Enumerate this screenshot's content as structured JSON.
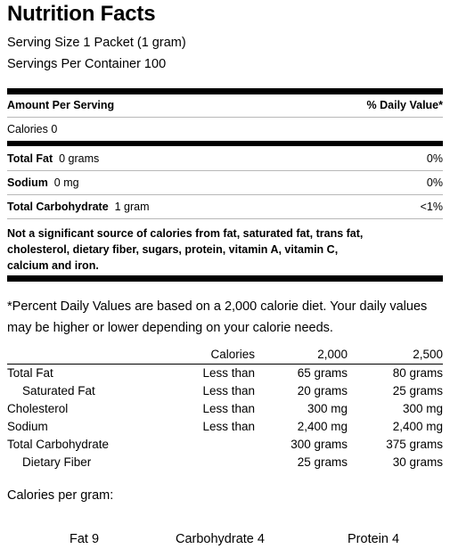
{
  "title": "Nutrition Facts",
  "serving_size": "Serving Size 1 Packet (1 gram)",
  "servings_per_container": "Servings Per Container 100",
  "amount_header": "Amount Per Serving",
  "dv_header": "% Daily Value*",
  "calories": "Calories 0",
  "nutrients": [
    {
      "name": "Total Fat",
      "amount": "0 grams",
      "dv": "0%"
    },
    {
      "name": "Sodium",
      "amount": "0 mg",
      "dv": "0%"
    },
    {
      "name": "Total Carbohydrate",
      "amount": "1 gram",
      "dv": "<1%"
    }
  ],
  "not_significant_note": "Not a significant source of calories from fat, saturated fat, trans fat, cholesterol, dietary fiber, sugars, protein, vitamin A, vitamin C, calcium and iron.",
  "footnote": "*Percent Daily Values are based on a 2,000 calorie diet. Your daily values may be higher or lower depending on your calorie needs.",
  "dv_table": {
    "header": [
      "",
      "Calories",
      "2,000",
      "2,500"
    ],
    "rows": [
      [
        "Total Fat",
        "Less than",
        "65 grams",
        "80 grams"
      ],
      [
        "Saturated Fat",
        "Less than",
        "20 grams",
        "25 grams"
      ],
      [
        "Cholesterol",
        "Less than",
        "300 mg",
        "300 mg"
      ],
      [
        "Sodium",
        "Less than",
        "2,400 mg",
        "2,400 mg"
      ],
      [
        "Total Carbohydrate",
        "",
        "300 grams",
        "375 grams"
      ],
      [
        "Dietary Fiber",
        "",
        "25 grams",
        "30 grams"
      ]
    ]
  },
  "calories_per_gram_label": "Calories per gram:",
  "calories_per_gram": [
    "Fat 9",
    "Carbohydrate 4",
    "Protein 4"
  ]
}
